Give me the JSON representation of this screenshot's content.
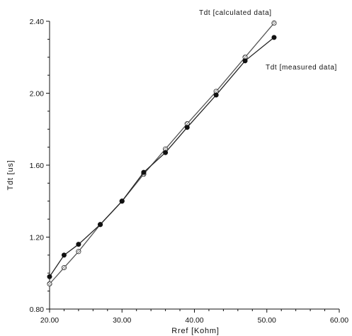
{
  "chart_data": {
    "type": "line",
    "title": "",
    "xlabel": "Rref [Kohm]",
    "ylabel": "Tdt [us]",
    "xlim": [
      20,
      60
    ],
    "ylim": [
      0.8,
      2.4
    ],
    "x_ticks": [
      20,
      30,
      40,
      50,
      60
    ],
    "x_tick_labels": [
      "20.00",
      "30.00",
      "40.00",
      "50.00",
      "60.00"
    ],
    "y_ticks": [
      0.8,
      1.2,
      1.6,
      2.0,
      2.4
    ],
    "y_tick_labels": [
      "0.80",
      "1.20",
      "1.60",
      "2.00",
      "2.40"
    ],
    "grid": false,
    "series": [
      {
        "name": "Tdt [calculated data]",
        "marker": "hatched-circle",
        "color": "#555555",
        "x": [
          20,
          22,
          24,
          27,
          30,
          33,
          36,
          39,
          43,
          47,
          51
        ],
        "y": [
          0.94,
          1.03,
          1.12,
          1.27,
          1.4,
          1.55,
          1.69,
          1.83,
          2.01,
          2.2,
          2.39
        ]
      },
      {
        "name": "Tdt [measured data]",
        "marker": "filled-circle",
        "color": "#222222",
        "x": [
          20,
          22,
          24,
          27,
          30,
          33,
          36,
          39,
          43,
          47,
          51
        ],
        "y": [
          0.98,
          1.1,
          1.16,
          1.27,
          1.4,
          1.56,
          1.67,
          1.81,
          1.99,
          2.18,
          2.31
        ]
      }
    ]
  }
}
